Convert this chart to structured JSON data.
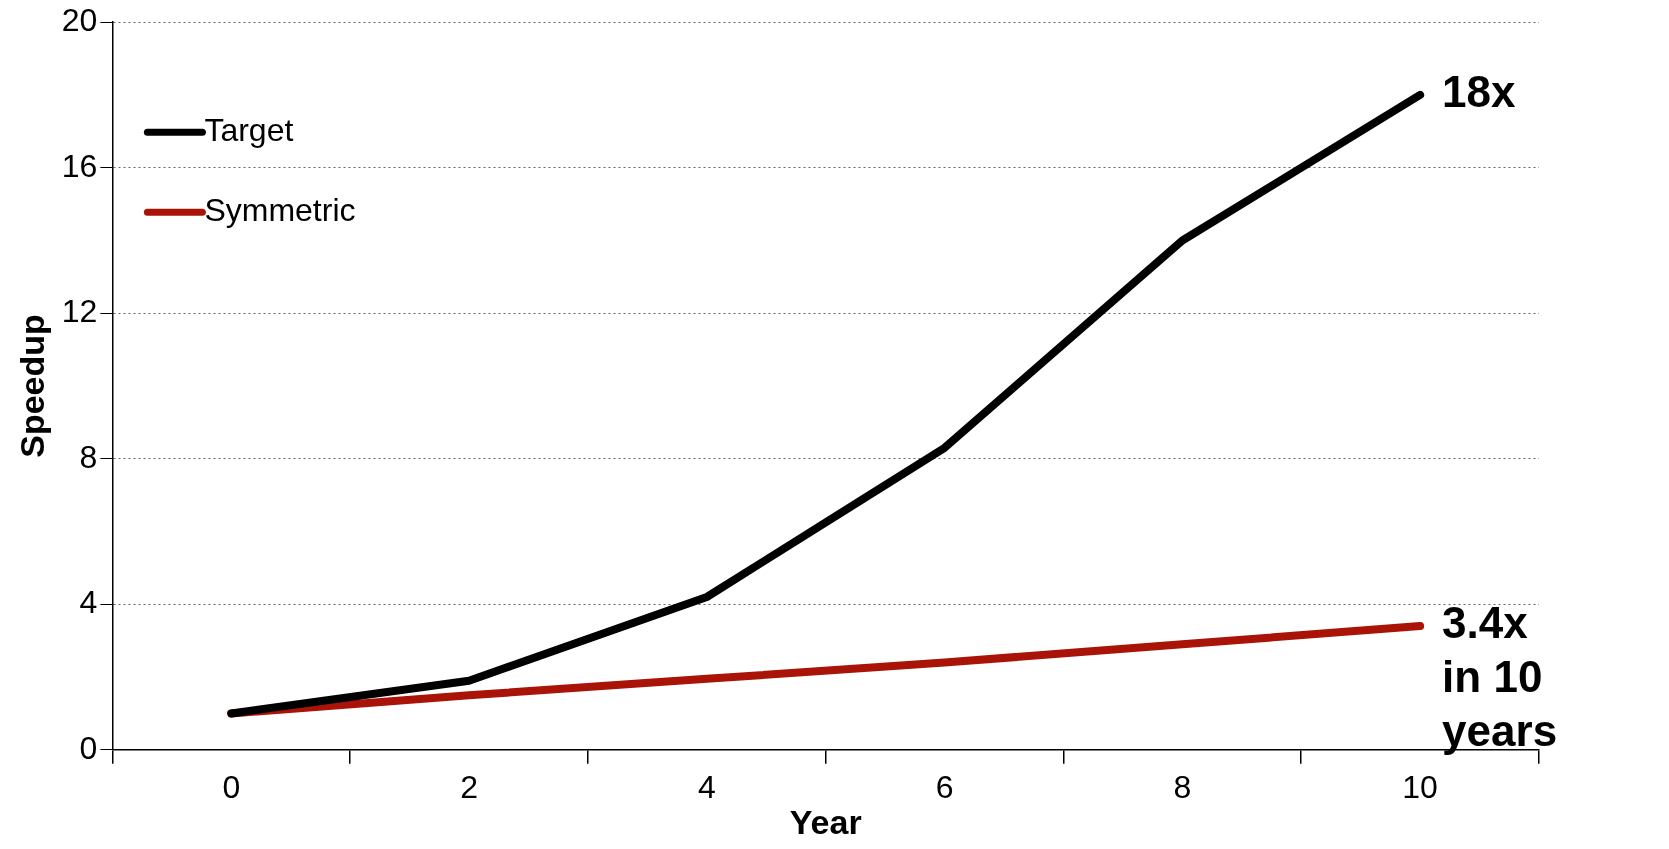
{
  "chart_data": {
    "type": "line",
    "xlabel": "Year",
    "ylabel": "Speedup",
    "categories": [
      "0",
      "2",
      "4",
      "6",
      "8",
      "10"
    ],
    "series": [
      {
        "name": "Target",
        "color": "#000000",
        "values": [
          1,
          1.9,
          4.2,
          8.3,
          14,
          18
        ]
      },
      {
        "name": "Symmetric",
        "color": "#aa1408",
        "values": [
          1,
          1.5,
          1.95,
          2.4,
          2.9,
          3.4
        ]
      }
    ],
    "ylim": [
      0,
      20
    ],
    "yticks": [
      0,
      4,
      8,
      12,
      16,
      20
    ],
    "grid": "y",
    "legend": "top left",
    "marker": "none",
    "line_style": "solid",
    "annotations": [
      {
        "text": "18x",
        "x": "10",
        "y": 18
      },
      {
        "text": "3.4x in 10 years",
        "x": "10",
        "y": 3.4
      }
    ]
  }
}
